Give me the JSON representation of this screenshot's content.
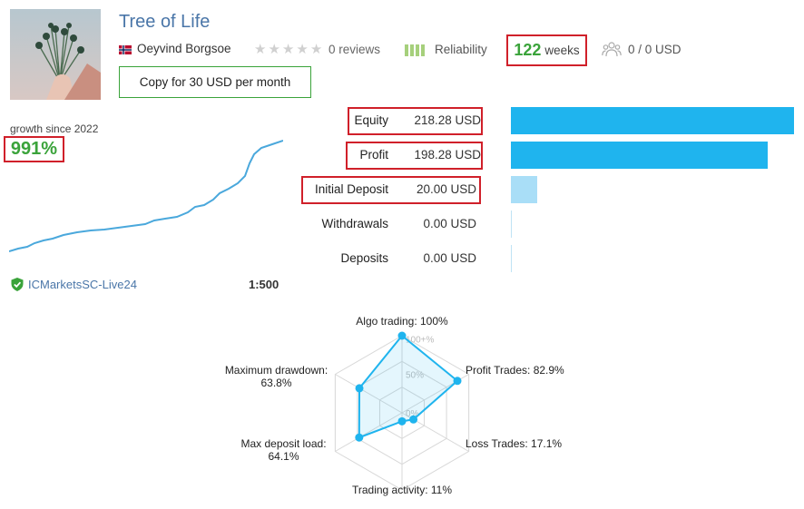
{
  "header": {
    "title": "Tree of Life",
    "author": "Oeyvind Borgsoe",
    "reviews": "0 reviews",
    "reliability_label": "Reliability",
    "weeks_value": "122",
    "weeks_label": "weeks",
    "subscribers": "0 / 0 USD",
    "copy_button": "Copy for 30 USD per month",
    "rating_stars": 0
  },
  "growth": {
    "label": "growth since 2022",
    "value": "991%"
  },
  "account": {
    "server": "ICMarketsSC-Live24",
    "leverage": "1:500"
  },
  "stats": [
    {
      "label": "Equity",
      "value": "218.28 USD",
      "amount": 218.28,
      "highlighted": true
    },
    {
      "label": "Profit",
      "value": "198.28 USD",
      "amount": 198.28,
      "highlighted": true
    },
    {
      "label": "Initial Deposit",
      "value": "20.00 USD",
      "amount": 20.0,
      "highlighted": true
    },
    {
      "label": "Withdrawals",
      "value": "0.00 USD",
      "amount": 0,
      "highlighted": false
    },
    {
      "label": "Deposits",
      "value": "0.00 USD",
      "amount": 0,
      "highlighted": false
    }
  ],
  "radar": {
    "ticks": [
      "100+%",
      "50%",
      "0%"
    ],
    "axes": [
      {
        "label": "Algo trading: 100%",
        "value": 100
      },
      {
        "label": "Profit Trades: 82.9%",
        "value": 82.9
      },
      {
        "label": "Loss Trades: 17.1%",
        "value": 17.1
      },
      {
        "label": "Trading activity: 11%",
        "value": 11
      },
      {
        "label_line1": "Max deposit load:",
        "label_line2": "64.1%",
        "value": 64.1
      },
      {
        "label_line1": "Maximum drawdown:",
        "label_line2": "63.8%",
        "value": 63.8
      }
    ]
  },
  "colors": {
    "accent_blue": "#1fb4ee",
    "light_blue": "#a9def7",
    "title_blue": "#4a76a8",
    "green": "#3aa33a",
    "highlight_red": "#d0202a"
  }
}
